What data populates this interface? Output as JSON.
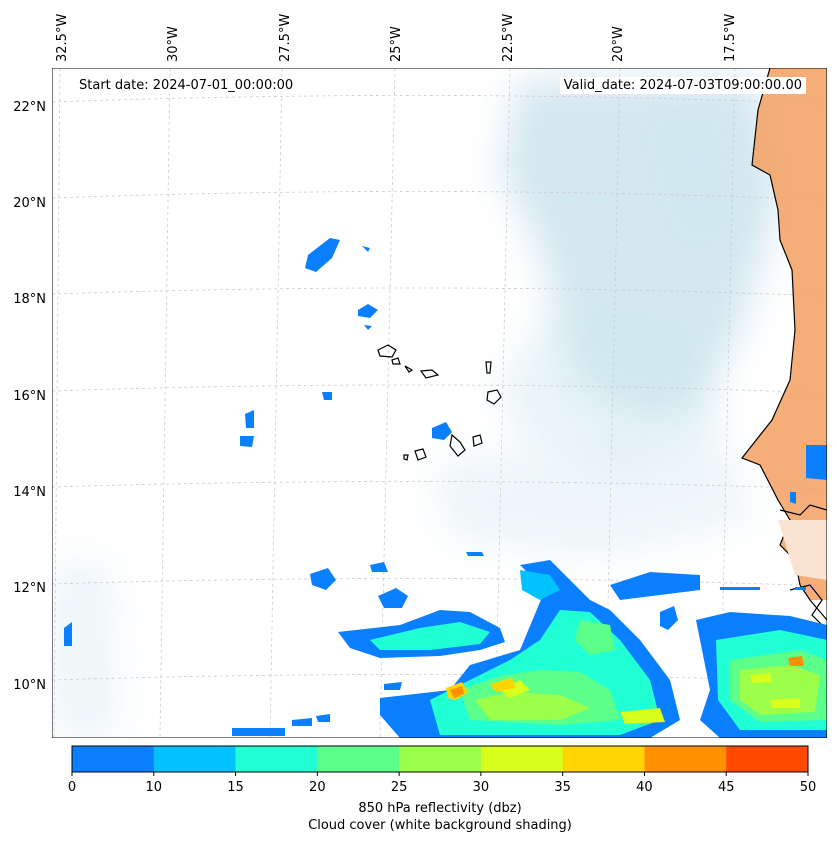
{
  "map": {
    "start_date": "Start date: 2024-07-01_00:00:00",
    "valid_date": "Valid_date: 2024-07-03T09:00:00.00",
    "lon_labels": [
      "32.5°W",
      "30°W",
      "27.5°W",
      "25°W",
      "22.5°W",
      "20°W",
      "17.5°W"
    ],
    "lat_labels": [
      "22°N",
      "20°N",
      "18°N",
      "16°N",
      "14°N",
      "12°N",
      "10°N"
    ],
    "lon_range_deg": [
      -33,
      -15.2
    ],
    "lat_range_deg": [
      8.9,
      22.8
    ],
    "gridlines": true,
    "colors": {
      "cloud_cover": "#cfe6ee",
      "land_fill": "#f3a060",
      "coastline": "#000000",
      "grid": "#cccccc"
    }
  },
  "colorbar": {
    "title": "850 hPa reflectivity (dbz)",
    "subtitle": "Cloud cover (white background shading)",
    "ticks": [
      "0",
      "10",
      "15",
      "20",
      "25",
      "30",
      "35",
      "40",
      "45",
      "50"
    ],
    "levels": [
      0,
      10,
      15,
      20,
      25,
      30,
      35,
      40,
      45,
      50
    ],
    "colors": [
      "#0a7fff",
      "#00c2ff",
      "#21ffd4",
      "#5cff8a",
      "#9cff4a",
      "#d9ff1c",
      "#ffd500",
      "#ff9000",
      "#ff4a00"
    ]
  }
}
